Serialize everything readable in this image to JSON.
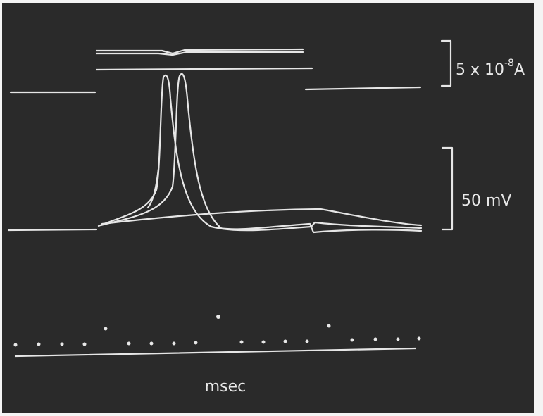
{
  "labels": {
    "current_scale": {
      "base": "5 x 10",
      "exponent": "-8",
      "unit": "A"
    },
    "voltage_scale": "50 mV",
    "time_scale": "msec"
  }
}
